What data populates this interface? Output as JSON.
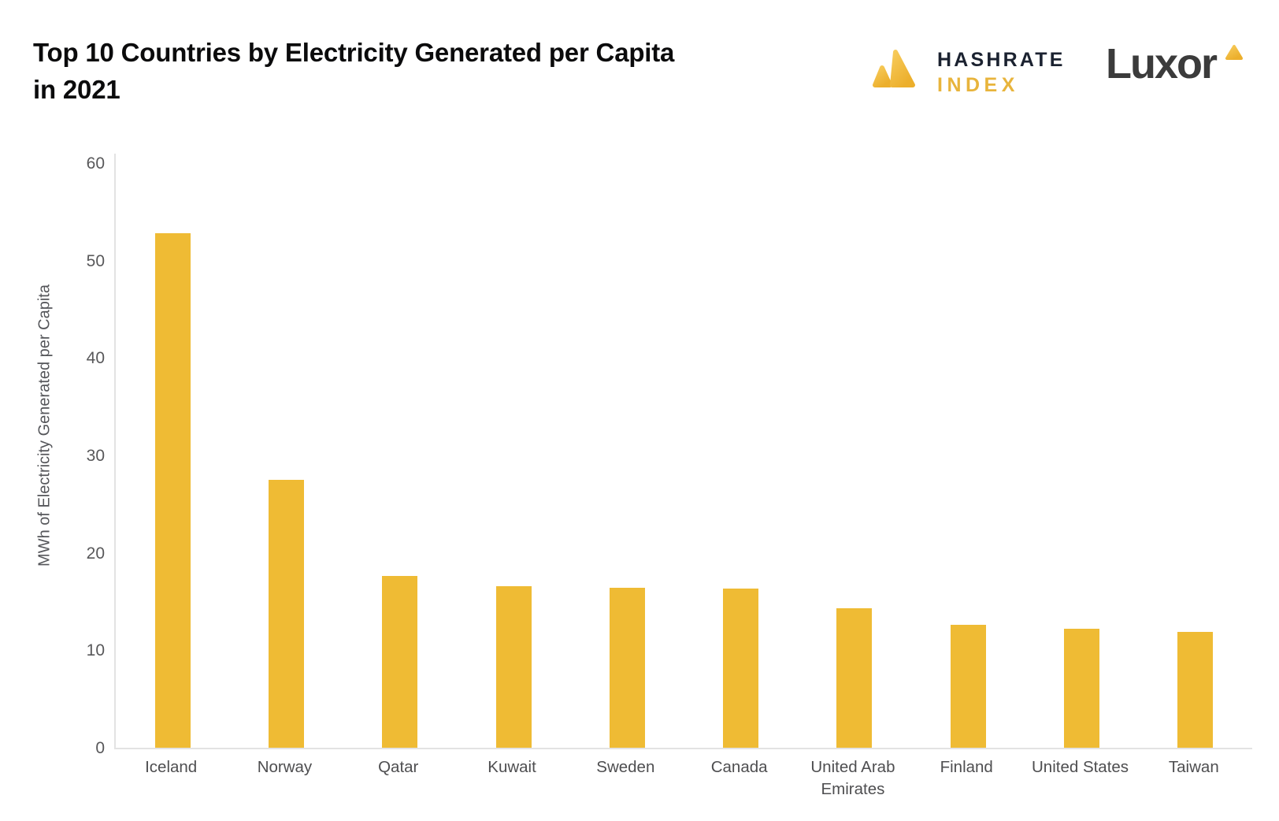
{
  "header": {
    "title": "Top 10 Countries by Electricity Generated per Capita in 2021"
  },
  "branding": {
    "hashrate_index": {
      "line1": "HASHRATE",
      "line2": "INDEX"
    },
    "luxor": {
      "wordmark": "Luxor"
    }
  },
  "colors": {
    "bar": "#EFBB34",
    "accent_gold": "#E8B43C",
    "title_text": "#0B0B0C",
    "tick_text": "#58585A",
    "category_text": "#4E4E50",
    "axis_line": "#E3E3E3",
    "hashrate_text": "#1B2230",
    "luxor_text": "#3B3B3B"
  },
  "chart_data": {
    "type": "bar",
    "title": "Top 10 Countries by Electricity Generated per Capita in 2021",
    "categories": [
      "Iceland",
      "Norway",
      "Qatar",
      "Kuwait",
      "Sweden",
      "Canada",
      "United Arab Emirates",
      "Finland",
      "United States",
      "Taiwan"
    ],
    "values": [
      52.8,
      27.5,
      17.6,
      16.6,
      16.4,
      16.3,
      14.3,
      12.6,
      12.2,
      11.9
    ],
    "xlabel": "",
    "ylabel": "MWh of Electricity Generated per Capita",
    "ylim": [
      0,
      60
    ],
    "yticks": [
      0,
      10,
      20,
      30,
      40,
      50,
      60
    ],
    "grid": false,
    "legend": false,
    "bar_color": "#EFBB34"
  }
}
